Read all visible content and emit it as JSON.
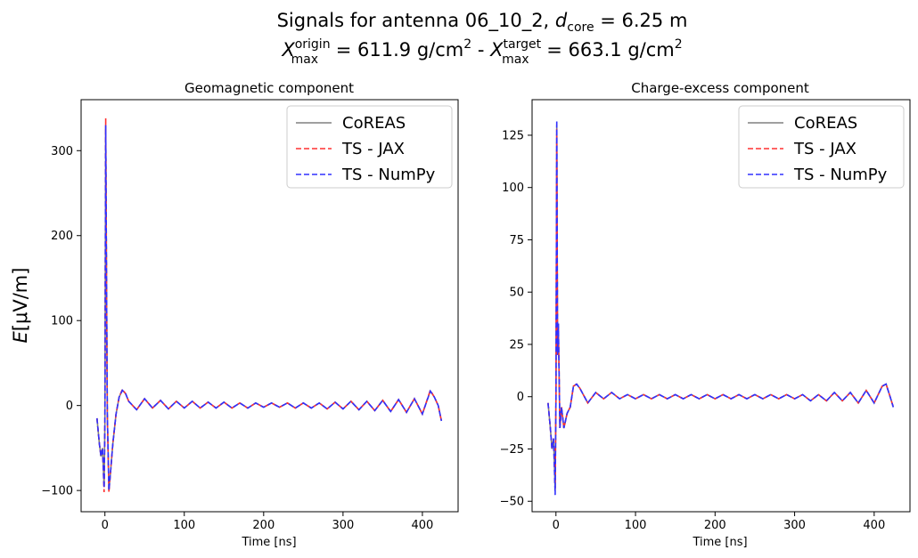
{
  "figure": {
    "title_line1": "Signals for antenna 06_10_2, d_core = 6.25 m",
    "title_line2": "X_max^origin =  611.9 g/cm^2 -  X_max^target =  663.1 g/cm^2",
    "t1_prefix": "Signals for antenna 06_10_2, ",
    "t1_d": "d",
    "t1_sub": "core",
    "t1_suffix": " = 6.25 m",
    "t2_x1": "X",
    "t2_x1_sup": "origin",
    "t2_x1_sub": "max",
    "t2_mid1": " =  611.9 g/cm",
    "t2_sq1": "2",
    "t2_mid2": " -  ",
    "t2_x2": "X",
    "t2_x2_sup": "target",
    "t2_x2_sub": "max",
    "t2_mid3": " =  663.1 g/cm",
    "t2_sq2": "2",
    "ylabel_italic": "E",
    "ylabel_rest": "[μV/m]"
  },
  "colors": {
    "coreas": "#808080",
    "jax": "#ff3030",
    "numpy": "#3030ff"
  },
  "chart_data": [
    {
      "type": "line",
      "title": "Geomagnetic component",
      "xlabel": "Time [ns]",
      "ylabel": "E[μV/m]",
      "xlim": [
        -30,
        445
      ],
      "ylim": [
        -125,
        360
      ],
      "xticks": [
        0,
        100,
        200,
        300,
        400
      ],
      "yticks": [
        -100,
        0,
        100,
        200,
        300
      ],
      "ytick_labels": [
        "−100",
        "0",
        "100",
        "200",
        "300"
      ],
      "grid": false,
      "legend_position": "top-right",
      "series": [
        {
          "name": "CoREAS",
          "style": "solid",
          "x": [
            -10,
            -7,
            -5,
            -3,
            -1,
            0,
            1,
            2,
            3,
            5,
            7,
            10,
            14,
            18,
            22,
            26,
            30,
            40,
            50,
            60,
            70,
            80,
            90,
            100,
            110,
            120,
            130,
            140,
            150,
            160,
            170,
            180,
            190,
            200,
            210,
            220,
            230,
            240,
            250,
            260,
            270,
            280,
            290,
            300,
            310,
            320,
            330,
            340,
            350,
            360,
            370,
            380,
            390,
            400,
            410,
            415,
            420,
            424
          ],
          "y": [
            -15,
            -45,
            -60,
            -50,
            -95,
            -20,
            328,
            150,
            -10,
            -100,
            -80,
            -45,
            -10,
            10,
            18,
            14,
            5,
            -5,
            8,
            -3,
            6,
            -4,
            5,
            -3,
            5,
            -3,
            4,
            -3,
            4,
            -3,
            3,
            -3,
            3,
            -2,
            3,
            -2,
            3,
            -3,
            3,
            -3,
            3,
            -4,
            4,
            -4,
            5,
            -5,
            5,
            -6,
            6,
            -7,
            7,
            -8,
            8,
            -10,
            17,
            10,
            0,
            -18
          ]
        },
        {
          "name": "TS - JAX",
          "style": "dashed",
          "x": [
            -10,
            -7,
            -5,
            -3,
            -1,
            0,
            1,
            2,
            3,
            5,
            7,
            10,
            14,
            18,
            22,
            26,
            30,
            40,
            50,
            60,
            70,
            80,
            90,
            100,
            110,
            120,
            130,
            140,
            150,
            160,
            170,
            180,
            190,
            200,
            210,
            220,
            230,
            240,
            250,
            260,
            270,
            280,
            290,
            300,
            310,
            320,
            330,
            340,
            350,
            360,
            370,
            380,
            390,
            400,
            410,
            415,
            420,
            424
          ],
          "y": [
            -15,
            -45,
            -60,
            -50,
            -102,
            -20,
            338,
            150,
            -10,
            -102,
            -80,
            -45,
            -10,
            10,
            19,
            14,
            5,
            -5,
            8,
            -3,
            6,
            -4,
            5,
            -3,
            5,
            -3,
            4,
            -3,
            4,
            -3,
            3,
            -3,
            3,
            -2,
            3,
            -2,
            3,
            -3,
            3,
            -3,
            3,
            -4,
            4,
            -4,
            5,
            -5,
            5,
            -6,
            6,
            -7,
            7,
            -8,
            8,
            -10,
            18,
            10,
            0,
            -18
          ]
        },
        {
          "name": "TS - NumPy",
          "style": "dashed",
          "x": [
            -10,
            -7,
            -5,
            -3,
            -1,
            0,
            1,
            2,
            3,
            5,
            7,
            10,
            14,
            18,
            22,
            26,
            30,
            40,
            50,
            60,
            70,
            80,
            90,
            100,
            110,
            120,
            130,
            140,
            150,
            160,
            170,
            180,
            190,
            200,
            210,
            220,
            230,
            240,
            250,
            260,
            270,
            280,
            290,
            300,
            310,
            320,
            330,
            340,
            350,
            360,
            370,
            380,
            390,
            400,
            410,
            415,
            420,
            424
          ],
          "y": [
            -15,
            -45,
            -60,
            -50,
            -97,
            -20,
            330,
            150,
            -10,
            -100,
            -80,
            -45,
            -10,
            10,
            18,
            14,
            5,
            -5,
            8,
            -3,
            6,
            -4,
            5,
            -3,
            5,
            -3,
            4,
            -3,
            4,
            -3,
            3,
            -3,
            3,
            -2,
            3,
            -2,
            3,
            -3,
            3,
            -3,
            3,
            -4,
            4,
            -4,
            5,
            -5,
            5,
            -6,
            6,
            -7,
            7,
            -8,
            8,
            -10,
            17,
            10,
            0,
            -18
          ]
        }
      ]
    },
    {
      "type": "line",
      "title": "Charge-excess component",
      "xlabel": "Time [ns]",
      "ylabel": "",
      "xlim": [
        -30,
        445
      ],
      "ylim": [
        -55,
        142
      ],
      "xticks": [
        0,
        100,
        200,
        300,
        400
      ],
      "yticks": [
        -50,
        -25,
        0,
        25,
        50,
        75,
        100,
        125
      ],
      "ytick_labels": [
        "−50",
        "−25",
        "0",
        "25",
        "50",
        "75",
        "100",
        "125"
      ],
      "grid": false,
      "legend_position": "top-right",
      "series": [
        {
          "name": "CoREAS",
          "style": "solid",
          "x": [
            -10,
            -7,
            -5,
            -3,
            -1,
            0,
            1,
            2,
            3,
            5,
            7,
            10,
            14,
            18,
            22,
            26,
            30,
            40,
            50,
            60,
            70,
            80,
            90,
            100,
            110,
            120,
            130,
            140,
            150,
            160,
            170,
            180,
            190,
            200,
            210,
            220,
            230,
            240,
            250,
            260,
            270,
            280,
            290,
            300,
            310,
            320,
            330,
            340,
            350,
            360,
            370,
            380,
            390,
            400,
            410,
            415,
            420,
            424
          ],
          "y": [
            -3,
            -15,
            -25,
            -20,
            -45,
            0,
            130,
            20,
            35,
            -15,
            -5,
            -15,
            -8,
            -5,
            5,
            6,
            4,
            -3,
            2,
            -1,
            2,
            -1,
            1,
            -1,
            1,
            -1,
            1,
            -1,
            1,
            -1,
            1,
            -1,
            1,
            -1,
            1,
            -1,
            1,
            -1,
            1,
            -1,
            1,
            -1,
            1,
            -1,
            1,
            -2,
            1,
            -2,
            2,
            -2,
            2,
            -3,
            3,
            -3,
            5,
            6,
            0,
            -5
          ]
        },
        {
          "name": "TS - JAX",
          "style": "dashed",
          "x": [
            -10,
            -7,
            -5,
            -3,
            -1,
            0,
            1,
            2,
            3,
            5,
            7,
            10,
            14,
            18,
            22,
            26,
            30,
            40,
            50,
            60,
            70,
            80,
            90,
            100,
            110,
            120,
            130,
            140,
            150,
            160,
            170,
            180,
            190,
            200,
            210,
            220,
            230,
            240,
            250,
            260,
            270,
            280,
            290,
            300,
            310,
            320,
            330,
            340,
            350,
            360,
            370,
            380,
            390,
            400,
            410,
            415,
            420,
            424
          ],
          "y": [
            -3,
            -15,
            -25,
            -20,
            -44,
            0,
            128,
            20,
            33,
            -15,
            -5,
            -15,
            -8,
            -5,
            5,
            6,
            4,
            -3,
            2,
            -1,
            2,
            -1,
            1,
            -1,
            1,
            -1,
            1,
            -1,
            1,
            -1,
            1,
            -1,
            1,
            -1,
            1,
            -1,
            1,
            -1,
            1,
            -1,
            1,
            -1,
            1,
            -1,
            1,
            -2,
            1,
            -2,
            2,
            -2,
            2,
            -3,
            3,
            -3,
            5,
            6,
            0,
            -5
          ]
        },
        {
          "name": "TS - NumPy",
          "style": "dashed",
          "x": [
            -10,
            -7,
            -5,
            -3,
            -1,
            0,
            1,
            2,
            3,
            5,
            7,
            10,
            14,
            18,
            22,
            26,
            30,
            40,
            50,
            60,
            70,
            80,
            90,
            100,
            110,
            120,
            130,
            140,
            150,
            160,
            170,
            180,
            190,
            200,
            210,
            220,
            230,
            240,
            250,
            260,
            270,
            280,
            290,
            300,
            310,
            320,
            330,
            340,
            350,
            360,
            370,
            380,
            390,
            400,
            410,
            415,
            420,
            424
          ],
          "y": [
            -3,
            -15,
            -25,
            -20,
            -47,
            0,
            132,
            20,
            35,
            -15,
            -5,
            -15,
            -8,
            -5,
            5,
            6,
            4,
            -3,
            2,
            -1,
            2,
            -1,
            1,
            -1,
            1,
            -1,
            1,
            -1,
            1,
            -1,
            1,
            -1,
            1,
            -1,
            1,
            -1,
            1,
            -1,
            1,
            -1,
            1,
            -1,
            1,
            -1,
            1,
            -2,
            1,
            -2,
            2,
            -2,
            2,
            -3,
            3,
            -3,
            5,
            6,
            0,
            -5
          ]
        }
      ]
    }
  ]
}
